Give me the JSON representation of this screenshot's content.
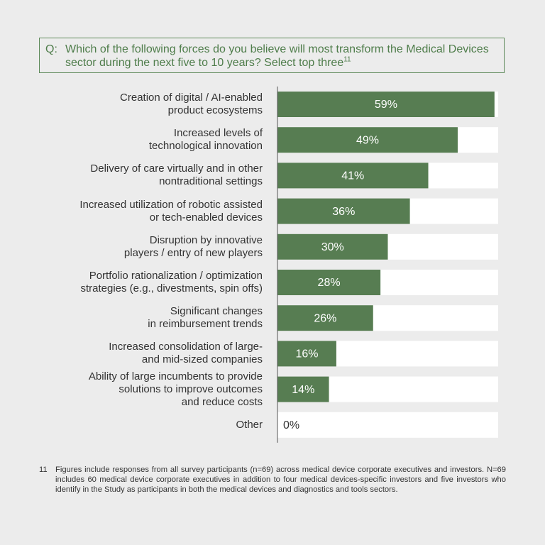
{
  "question": {
    "prefix": "Q:",
    "text": "Which of the following forces do you believe will most transform the Medical Devices sector during the next five to 10 years? Select top three",
    "superscript": "11"
  },
  "chart_data": {
    "type": "bar",
    "orientation": "horizontal",
    "color": "#577d52",
    "categories": [
      "Creation of digital / AI-enabled\nproduct ecosystems",
      "Increased levels of\ntechnological innovation",
      "Delivery of care virtually and in other\nnontraditional settings",
      "Increased utilization of robotic assisted\nor tech-enabled devices",
      "Disruption by innovative\nplayers / entry of new players",
      "Portfolio rationalization / optimization\nstrategies (e.g., divestments, spin offs)",
      "Significant changes\nin reimbursement trends",
      "Increased consolidation of large-\nand mid-sized companies",
      "Ability of large incumbents to provide\nsolutions to improve outcomes\nand reduce costs",
      "Other"
    ],
    "values": [
      59,
      49,
      41,
      36,
      30,
      28,
      26,
      16,
      14,
      0
    ],
    "value_labels": [
      "59%",
      "49%",
      "41%",
      "36%",
      "30%",
      "28%",
      "26%",
      "16%",
      "14%",
      "0%"
    ],
    "xlim": [
      0,
      60
    ]
  },
  "footnote": {
    "number": "11",
    "text": "Figures include responses from all survey participants (n=69) across medical device corporate executives and investors. N=69 includes 60 medical device corporate executives in addition to four medical devices-specific investors and five investors who identify in the Study as participants in both the medical devices and diagnostics and tools sectors."
  }
}
